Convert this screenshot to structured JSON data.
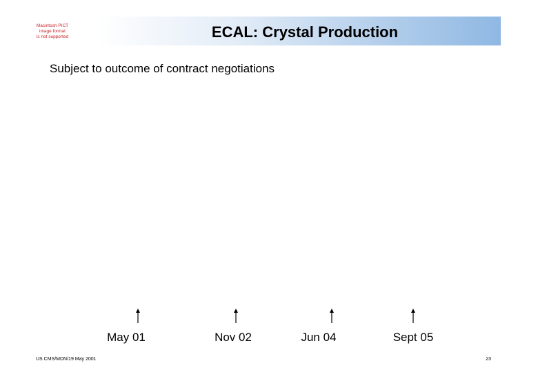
{
  "placeholder_image": {
    "lines": [
      "Macintosh PICT",
      "image format",
      "is not supported"
    ],
    "color": "#c8242a"
  },
  "header": {
    "title": "ECAL: Crystal Production",
    "bar_gradient_end": "#8fb8e3"
  },
  "subtitle": "Subject to outcome of contract negotiations",
  "milestones": [
    {
      "label": "May 01"
    },
    {
      "label": "Nov 02"
    },
    {
      "label": "Jun 04"
    },
    {
      "label": "Sept 05"
    }
  ],
  "footer": {
    "left": "US CMS/MDN/19 May 2001",
    "page_number": "23"
  }
}
